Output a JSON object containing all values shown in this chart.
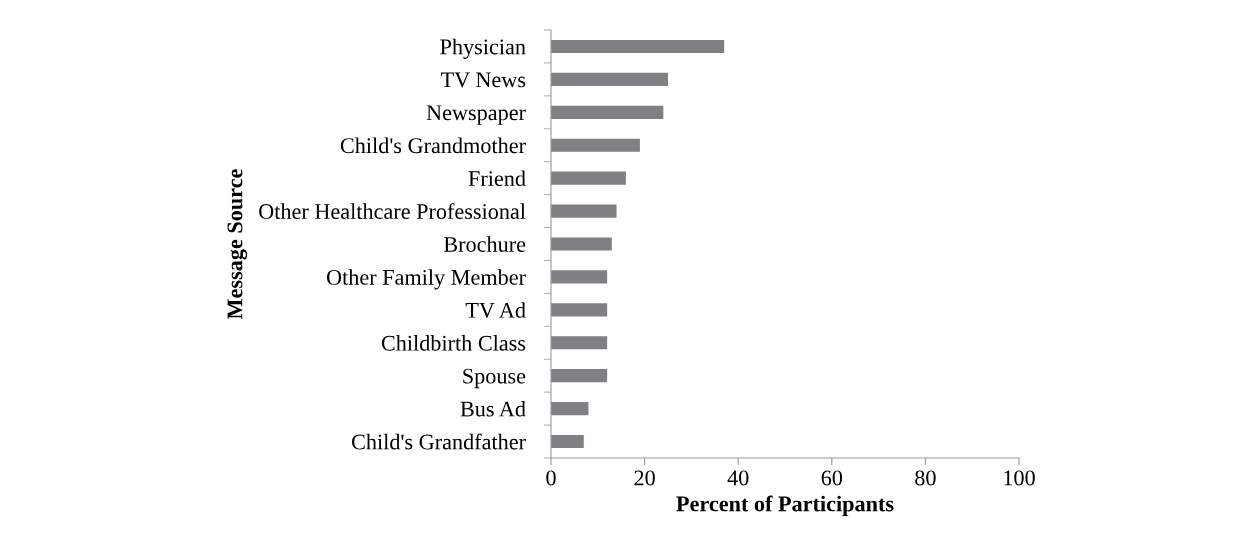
{
  "chart_data": {
    "type": "bar",
    "orientation": "horizontal",
    "categories": [
      "Physician",
      "TV News",
      "Newspaper",
      "Child's Grandmother",
      "Friend",
      "Other Healthcare Professional",
      "Brochure",
      "Other Family Member",
      "TV Ad",
      "Childbirth Class",
      "Spouse",
      "Bus Ad",
      "Child's Grandfather"
    ],
    "values": [
      37,
      25,
      24,
      19,
      16,
      14,
      13,
      12,
      12,
      12,
      12,
      8,
      7
    ],
    "color": "#7f7f84",
    "xlabel": "Percent of Participants",
    "ylabel": "Message Source",
    "xlim": [
      0,
      100
    ],
    "xticks": [
      0,
      20,
      40,
      60,
      80,
      100
    ],
    "grid": false,
    "legend": false
  }
}
